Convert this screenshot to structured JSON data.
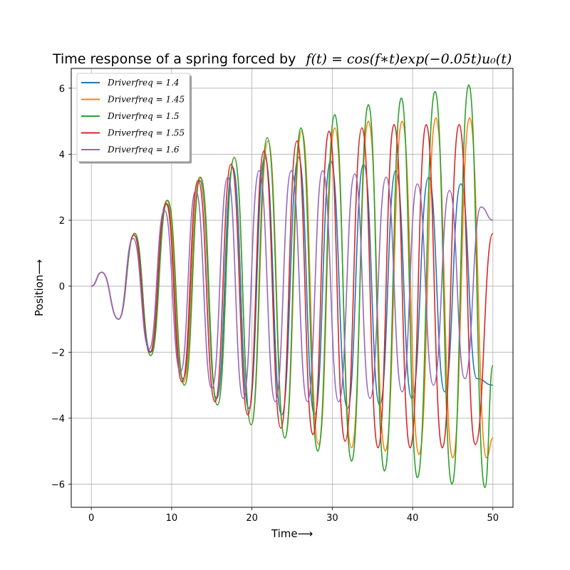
{
  "chart_data": {
    "type": "line",
    "title": "Time response of a spring forced by",
    "title_math": "f(t) = cos(f∗t)exp(−0.05t)u₀(t)",
    "xlabel": "Time⟶",
    "ylabel": "Position⟶",
    "xlim": [
      -2.5,
      52.5
    ],
    "ylim": [
      -6.7,
      6.6
    ],
    "x_ticks": [
      0,
      10,
      20,
      30,
      40,
      50
    ],
    "y_ticks": [
      -6,
      -4,
      -2,
      0,
      2,
      4,
      6
    ],
    "grid": true,
    "legend_position": "top-left",
    "series": [
      {
        "name": "Driverfreq = 1.4",
        "color": "#1f77b4",
        "x": [
          0,
          1.3,
          3.4,
          5.4,
          7.4,
          9.4,
          11.4,
          13.5,
          15.6,
          17.6,
          19.6,
          21.6,
          23.7,
          25.8,
          27.8,
          29.8,
          31.9,
          33.9,
          35.9,
          37.9,
          39.9,
          42.0,
          44.0,
          46.0,
          48.0,
          50
        ],
        "values": [
          0,
          0.42,
          -1.0,
          1.6,
          -2.0,
          2.5,
          -2.8,
          3.2,
          -3.4,
          3.6,
          -3.7,
          3.9,
          -3.9,
          3.9,
          -3.9,
          3.8,
          -3.7,
          3.7,
          -3.6,
          3.5,
          -3.4,
          3.3,
          -3.2,
          3.1,
          -2.8,
          -3.0
        ]
      },
      {
        "name": "Driverfreq = 1.45",
        "color": "#ff7f0e",
        "x": [
          0,
          1.3,
          3.4,
          5.4,
          7.4,
          9.4,
          11.5,
          13.5,
          15.7,
          17.8,
          19.9,
          22.0,
          24.1,
          26.2,
          28.3,
          30.3,
          32.4,
          34.5,
          36.6,
          38.7,
          40.8,
          42.9,
          45.0,
          47.1,
          49.2,
          50
        ],
        "values": [
          0,
          0.42,
          -1.0,
          1.6,
          -2.1,
          2.6,
          -2.9,
          3.3,
          -3.6,
          3.9,
          -4.2,
          4.4,
          -4.6,
          4.7,
          -4.8,
          4.8,
          -4.9,
          5.0,
          -5.0,
          5.0,
          -5.1,
          5.1,
          -5.2,
          5.1,
          -5.2,
          -4.6
        ]
      },
      {
        "name": "Driverfreq = 1.5",
        "color": "#2ca02c",
        "x": [
          0,
          1.3,
          3.4,
          5.4,
          7.4,
          9.5,
          11.6,
          13.6,
          15.7,
          17.8,
          19.9,
          21.9,
          24.1,
          26.1,
          28.2,
          30.3,
          32.4,
          34.5,
          36.5,
          38.6,
          40.6,
          42.8,
          44.9,
          47.0,
          49.0,
          50
        ],
        "values": [
          0,
          0.42,
          -1.0,
          1.6,
          -2.1,
          2.6,
          -3.0,
          3.3,
          -3.6,
          3.9,
          -4.2,
          4.5,
          -4.6,
          4.8,
          -5.0,
          5.2,
          -5.3,
          5.5,
          -5.6,
          5.7,
          -5.8,
          5.9,
          -6.0,
          6.1,
          -6.1,
          -2.4
        ]
      },
      {
        "name": "Driverfreq = 1.55",
        "color": "#d62728",
        "x": [
          0,
          1.3,
          3.4,
          5.3,
          7.3,
          9.3,
          11.3,
          13.3,
          15.4,
          17.4,
          19.5,
          21.5,
          23.6,
          25.6,
          27.6,
          29.6,
          31.6,
          33.7,
          35.7,
          37.7,
          39.7,
          41.7,
          43.7,
          45.8,
          47.8,
          50
        ],
        "values": [
          0,
          0.42,
          -1.0,
          1.55,
          -2.0,
          2.5,
          -2.9,
          3.2,
          -3.5,
          3.7,
          -3.9,
          4.1,
          -4.3,
          4.4,
          -4.5,
          4.7,
          -4.7,
          4.8,
          -4.9,
          4.9,
          -4.9,
          4.9,
          -4.9,
          4.9,
          -4.8,
          1.6
        ]
      },
      {
        "name": "Driverfreq = 1.6",
        "color": "#9467bd",
        "x": [
          0,
          1.3,
          3.4,
          5.2,
          7.2,
          9.1,
          11.1,
          13.0,
          15.0,
          17.0,
          18.9,
          20.9,
          22.9,
          24.9,
          26.9,
          28.8,
          30.8,
          32.8,
          34.7,
          36.7,
          38.7,
          40.6,
          42.6,
          44.6,
          46.5,
          48.5,
          50
        ],
        "values": [
          0,
          0.42,
          -1.0,
          1.45,
          -1.9,
          2.3,
          -2.6,
          2.9,
          -3.1,
          3.3,
          -3.4,
          3.5,
          -3.5,
          3.5,
          -3.5,
          3.5,
          -3.5,
          3.4,
          -3.4,
          3.3,
          -3.2,
          3.1,
          -3.0,
          2.9,
          -2.8,
          2.4,
          2.0
        ]
      }
    ]
  }
}
